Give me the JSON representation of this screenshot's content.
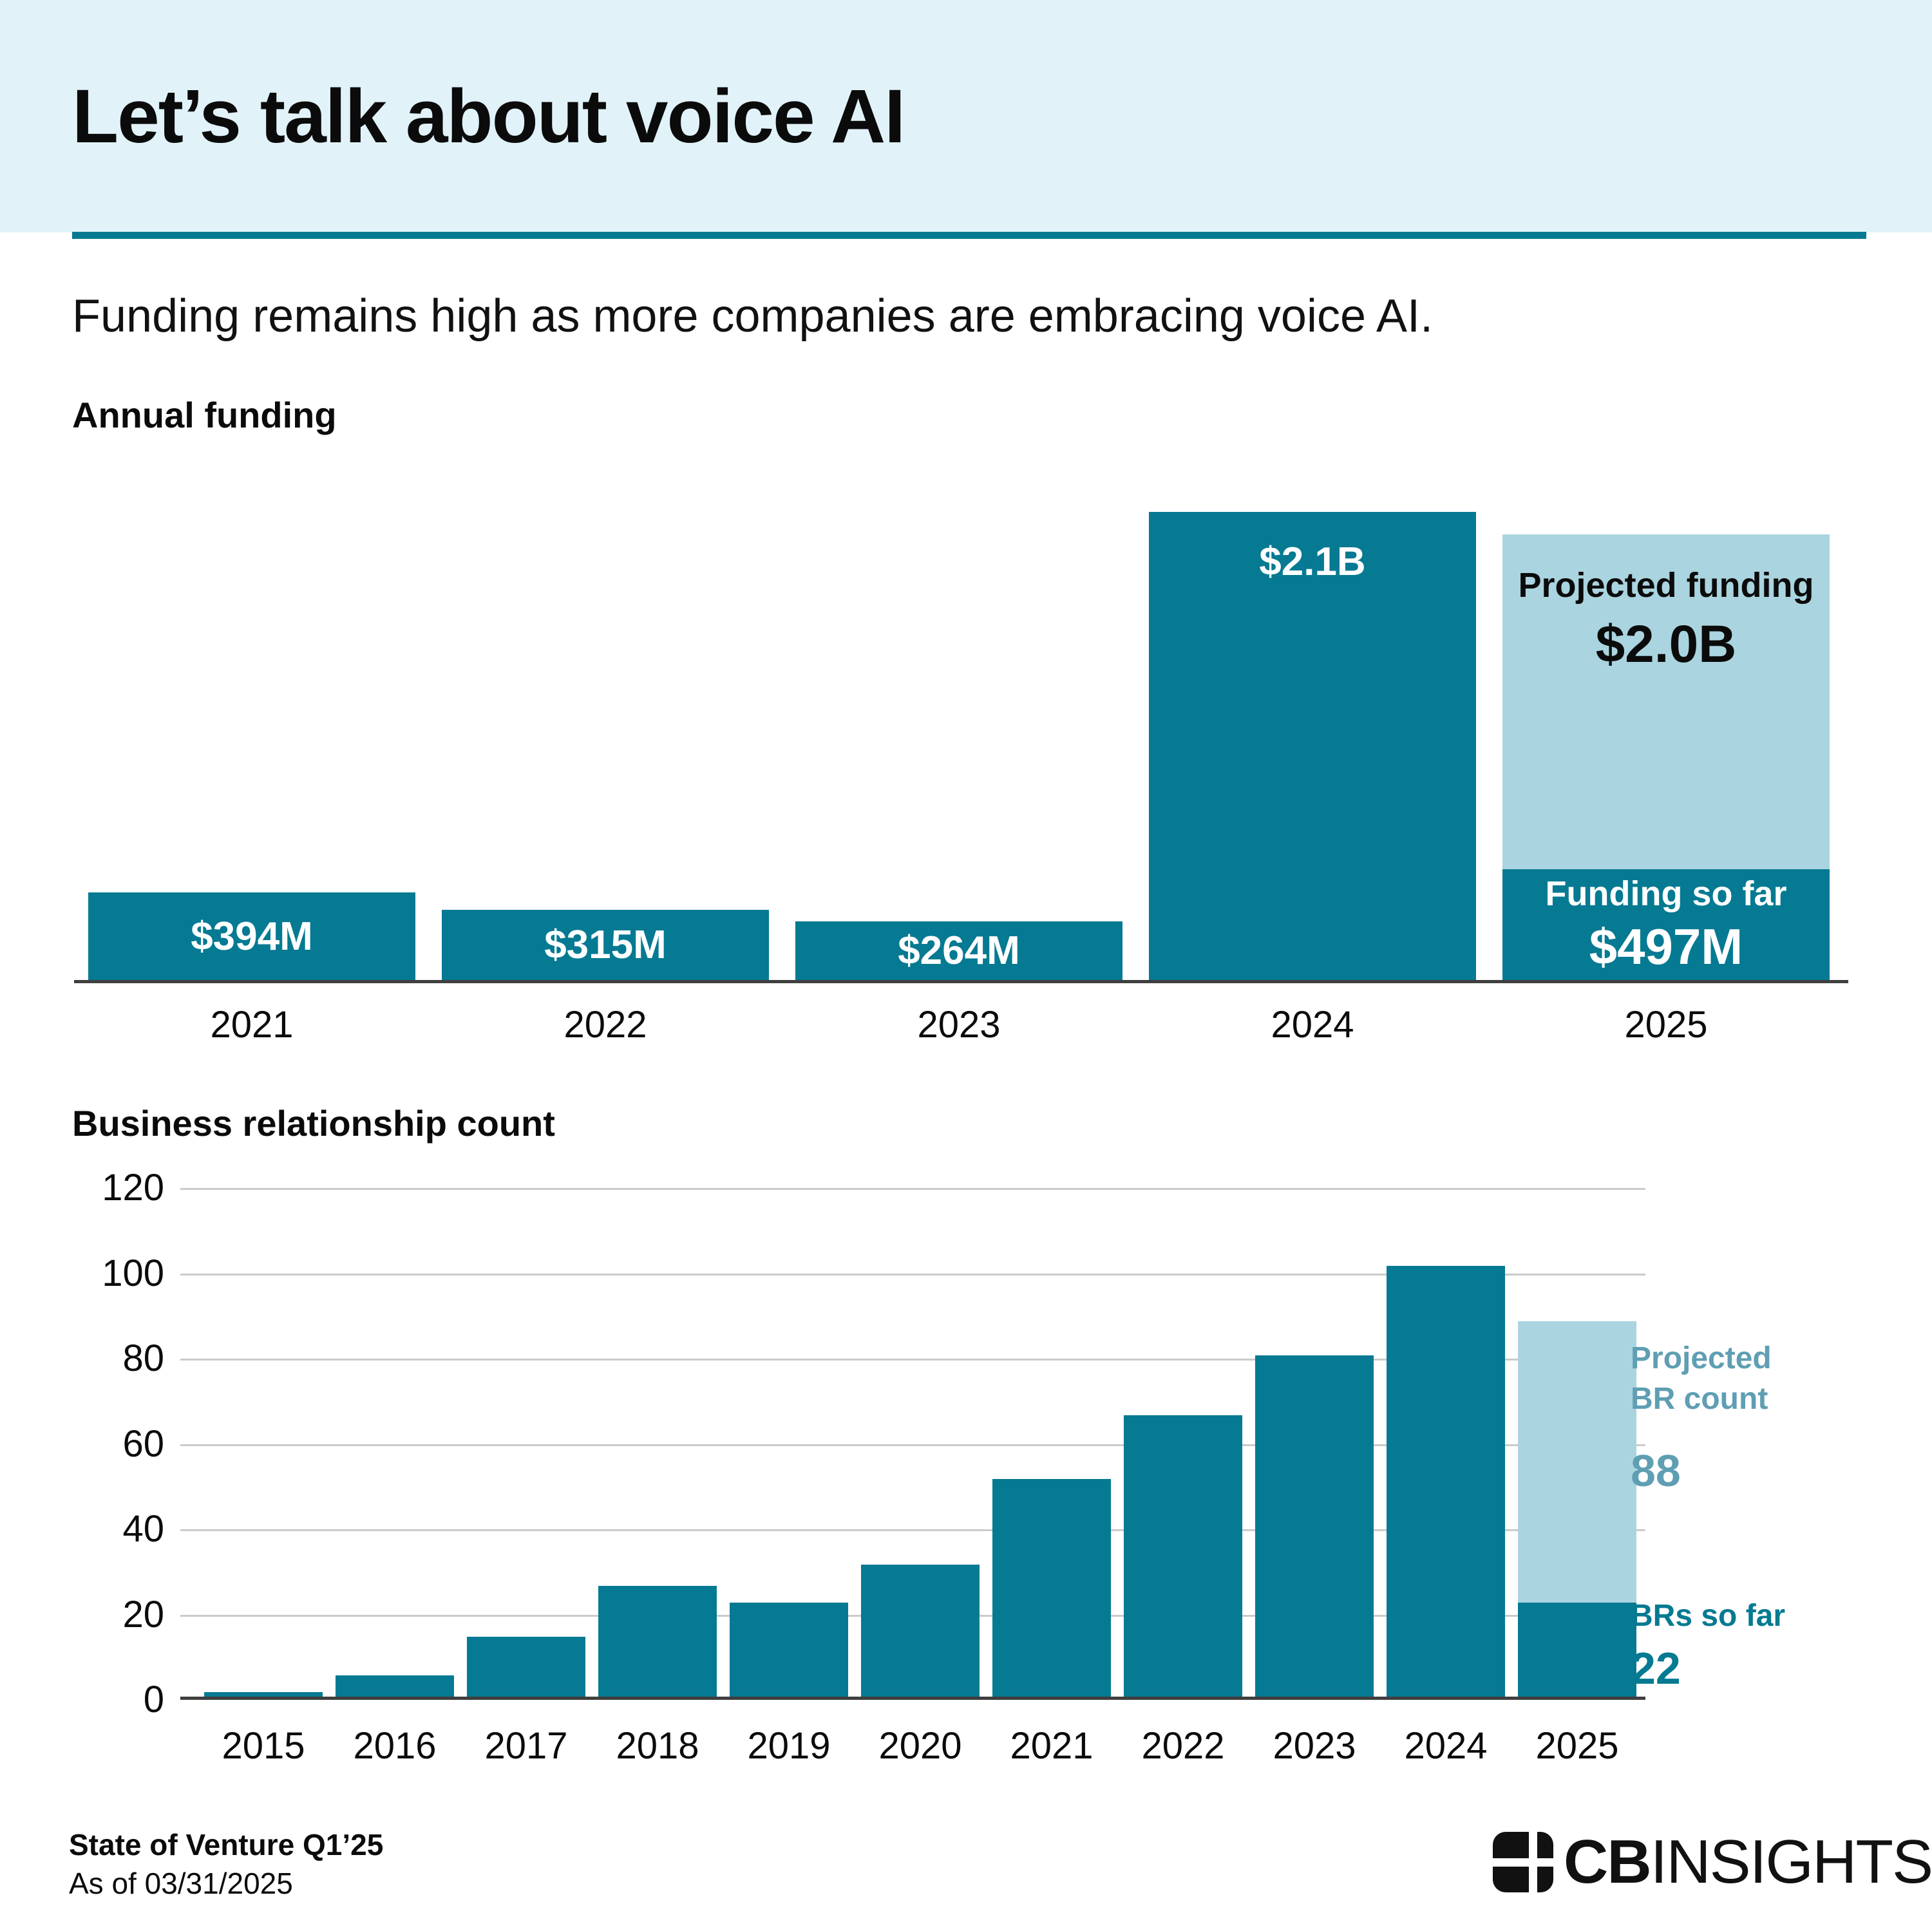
{
  "header": {
    "title": "Let’s talk about voice AI"
  },
  "subtitle": "Funding remains high as more companies are embracing voice AI.",
  "colors": {
    "teal": "#057a92",
    "light_blue": "#aad4df",
    "header_bg": "#e1f3f9",
    "muted_teal": "#5f9eb3",
    "axis": "#3f3f3f",
    "gridline": "#cbcbcb"
  },
  "chart_data": [
    {
      "id": "annual_funding",
      "type": "bar",
      "title": "Annual funding",
      "categories": [
        "2021",
        "2022",
        "2023",
        "2024",
        "2025"
      ],
      "values_musd": [
        394,
        315,
        264,
        2100,
        2000
      ],
      "bar_labels": [
        "$394M",
        "$315M",
        "$264M",
        "$2.1B",
        null
      ],
      "ylim_musd": [
        0,
        2100
      ],
      "grid": false,
      "stacked_2025": {
        "projected_title": "Projected funding",
        "projected_label": "$2.0B",
        "projected_total_musd": 2000,
        "so_far_title": "Funding so far",
        "so_far_label": "$497M",
        "so_far_musd": 497
      }
    },
    {
      "id": "business_relationship_count",
      "type": "bar",
      "title": "Business relationship count",
      "categories": [
        "2015",
        "2016",
        "2017",
        "2018",
        "2019",
        "2020",
        "2021",
        "2022",
        "2023",
        "2024",
        "2025"
      ],
      "values": [
        1,
        5,
        14,
        26,
        22,
        31,
        51,
        66,
        80,
        101,
        88
      ],
      "ticks": [
        0,
        20,
        40,
        60,
        80,
        100,
        120
      ],
      "ylim": [
        0,
        120
      ],
      "grid": true,
      "stacked_2025": {
        "so_far": 22,
        "projected_total": 88
      },
      "annotations": {
        "projected_label": "Projected\nBR count",
        "projected_value": "88",
        "so_far_label": "BRs so far",
        "so_far_value": "22"
      }
    }
  ],
  "footer": {
    "source": "State of Venture Q1’25",
    "as_of": "As of 03/31/2025",
    "logo_cb": "CB",
    "logo_insights": "INSIGHTS"
  }
}
